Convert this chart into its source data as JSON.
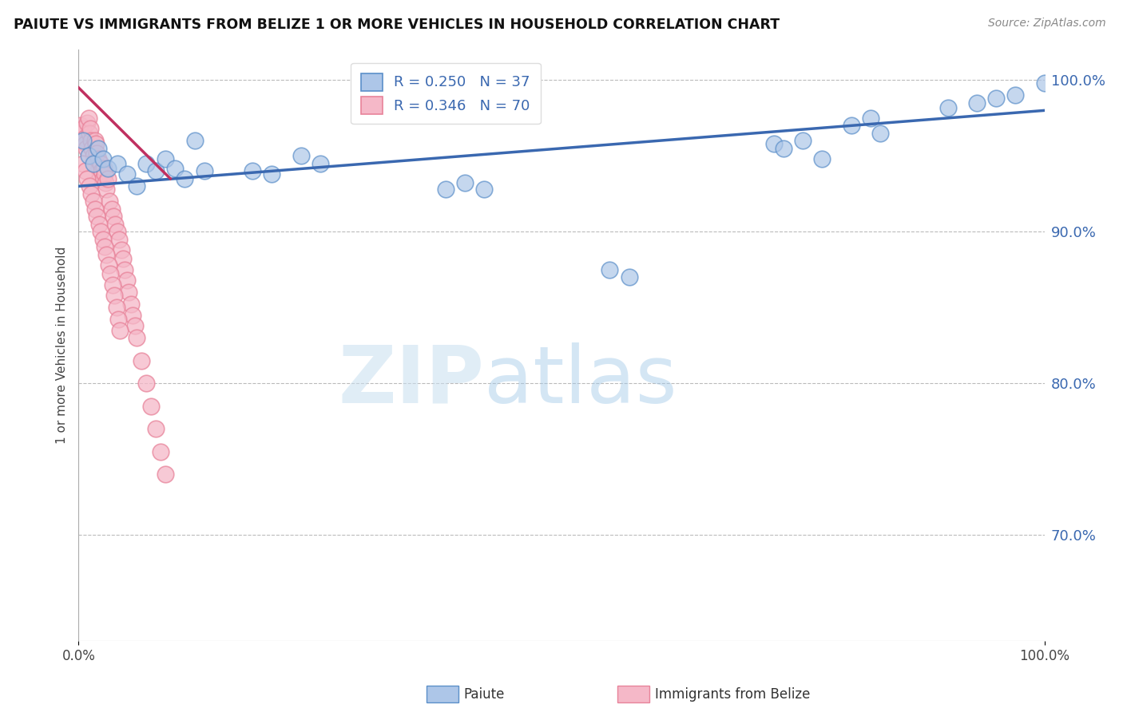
{
  "title": "PAIUTE VS IMMIGRANTS FROM BELIZE 1 OR MORE VEHICLES IN HOUSEHOLD CORRELATION CHART",
  "source_text": "Source: ZipAtlas.com",
  "ylabel": "1 or more Vehicles in Household",
  "xlim": [
    0.0,
    1.0
  ],
  "ylim": [
    0.63,
    1.02
  ],
  "legend_blue_label": "R = 0.250   N = 37",
  "legend_pink_label": "R = 0.346   N = 70",
  "watermark_zip": "ZIP",
  "watermark_atlas": "atlas",
  "blue_color": "#adc6e8",
  "blue_edge_color": "#5b8fc9",
  "blue_line_color": "#3a68b0",
  "pink_color": "#f5b8c8",
  "pink_edge_color": "#e8839a",
  "pink_line_color": "#c03060",
  "background_color": "#ffffff",
  "grid_color": "#bbbbbb",
  "ytick_vals": [
    0.7,
    0.8,
    0.9,
    1.0
  ],
  "ytick_labels": [
    "70.0%",
    "80.0%",
    "90.0%",
    "100.0%"
  ],
  "blue_points_x": [
    0.005,
    0.01,
    0.015,
    0.02,
    0.025,
    0.03,
    0.04,
    0.05,
    0.06,
    0.07,
    0.08,
    0.09,
    0.1,
    0.11,
    0.12,
    0.13,
    0.18,
    0.2,
    0.23,
    0.25,
    0.38,
    0.4,
    0.42,
    0.55,
    0.57,
    0.72,
    0.73,
    0.75,
    0.77,
    0.8,
    0.82,
    0.83,
    0.9,
    0.93,
    0.95,
    0.97,
    1.0
  ],
  "blue_points_y": [
    0.96,
    0.95,
    0.945,
    0.955,
    0.948,
    0.942,
    0.945,
    0.938,
    0.93,
    0.945,
    0.94,
    0.948,
    0.942,
    0.935,
    0.96,
    0.94,
    0.94,
    0.938,
    0.95,
    0.945,
    0.928,
    0.932,
    0.928,
    0.875,
    0.87,
    0.958,
    0.955,
    0.96,
    0.948,
    0.97,
    0.975,
    0.965,
    0.982,
    0.985,
    0.988,
    0.99,
    0.998
  ],
  "pink_points_x": [
    0.002,
    0.003,
    0.004,
    0.005,
    0.006,
    0.007,
    0.008,
    0.009,
    0.01,
    0.011,
    0.012,
    0.013,
    0.014,
    0.015,
    0.016,
    0.017,
    0.018,
    0.019,
    0.02,
    0.021,
    0.022,
    0.023,
    0.024,
    0.025,
    0.026,
    0.027,
    0.028,
    0.029,
    0.03,
    0.032,
    0.034,
    0.036,
    0.038,
    0.04,
    0.042,
    0.044,
    0.046,
    0.048,
    0.05,
    0.052,
    0.054,
    0.056,
    0.058,
    0.06,
    0.065,
    0.07,
    0.075,
    0.08,
    0.085,
    0.09,
    0.005,
    0.007,
    0.009,
    0.011,
    0.013,
    0.015,
    0.017,
    0.019,
    0.021,
    0.023,
    0.025,
    0.027,
    0.029,
    0.031,
    0.033,
    0.035,
    0.037,
    0.039,
    0.041,
    0.043
  ],
  "pink_points_y": [
    0.97,
    0.965,
    0.96,
    0.968,
    0.962,
    0.958,
    0.955,
    0.972,
    0.975,
    0.965,
    0.968,
    0.96,
    0.955,
    0.95,
    0.945,
    0.96,
    0.958,
    0.952,
    0.948,
    0.942,
    0.938,
    0.945,
    0.94,
    0.935,
    0.942,
    0.938,
    0.932,
    0.928,
    0.935,
    0.92,
    0.915,
    0.91,
    0.905,
    0.9,
    0.895,
    0.888,
    0.882,
    0.875,
    0.868,
    0.86,
    0.852,
    0.845,
    0.838,
    0.83,
    0.815,
    0.8,
    0.785,
    0.77,
    0.755,
    0.74,
    0.945,
    0.94,
    0.935,
    0.93,
    0.925,
    0.92,
    0.915,
    0.91,
    0.905,
    0.9,
    0.895,
    0.89,
    0.885,
    0.878,
    0.872,
    0.865,
    0.858,
    0.85,
    0.842,
    0.835
  ],
  "blue_trend_x": [
    0.0,
    1.0
  ],
  "blue_trend_y": [
    0.93,
    0.98
  ],
  "pink_trend_x": [
    0.0,
    0.095
  ],
  "pink_trend_y": [
    0.995,
    0.935
  ]
}
